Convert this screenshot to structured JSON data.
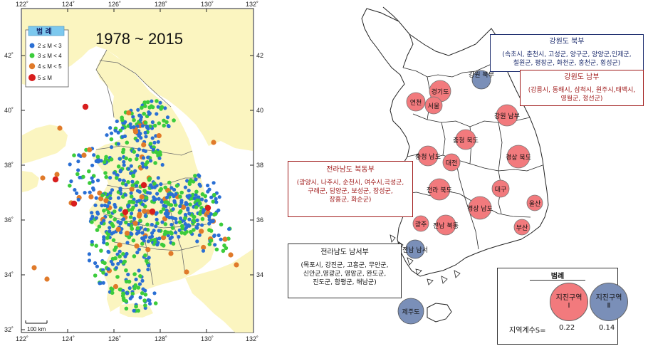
{
  "left_map": {
    "period_label": "1978 ~ 2015",
    "lon_ticks": [
      "122˚",
      "124˚",
      "126˚",
      "128˚",
      "130˚",
      "132˚"
    ],
    "lat_ticks": [
      "42˚",
      "40˚",
      "38˚",
      "36˚",
      "34˚",
      "32˚"
    ],
    "legend": {
      "title": "범 례",
      "items": [
        {
          "label": "2 ≤ M < 3",
          "color": "#2a6fd4"
        },
        {
          "label": "3 ≤ M < 4",
          "color": "#3ccc3c"
        },
        {
          "label": "4 ≤ M < 5",
          "color": "#e07a2a"
        },
        {
          "label": "5 ≤ M",
          "color": "#d81e1e"
        }
      ]
    },
    "scale_bar": "100 km",
    "colors": {
      "land": "#fbf5c0",
      "sea": "#ffffff",
      "border": "#6a6a6a",
      "frame": "#222222"
    }
  },
  "right_map": {
    "zones": [
      {
        "label": "경기도",
        "type": "I"
      },
      {
        "label": "연천",
        "type": "I"
      },
      {
        "label": "서울",
        "type": "I"
      },
      {
        "label": "강원 북부",
        "type": "II"
      },
      {
        "label": "강원 남부",
        "type": "I"
      },
      {
        "label": "충청 북도",
        "type": "I"
      },
      {
        "label": "충청 남도",
        "type": "I"
      },
      {
        "label": "대전",
        "type": "I"
      },
      {
        "label": "경상 북도",
        "type": "I"
      },
      {
        "label": "전라 북도",
        "type": "I"
      },
      {
        "label": "대구",
        "type": "I"
      },
      {
        "label": "경상 남도",
        "type": "I"
      },
      {
        "label": "울산",
        "type": "I"
      },
      {
        "label": "광주",
        "type": "I"
      },
      {
        "label": "전남 북동",
        "type": "I"
      },
      {
        "label": "부산",
        "type": "I"
      },
      {
        "label": "전남 남서",
        "type": "II"
      },
      {
        "label": "제주도",
        "type": "II"
      }
    ],
    "callouts": {
      "gangwon_north": {
        "title": "강원도 북부",
        "lines": [
          "(속초시, 춘천시, 고성군, 양구군, 양양군,인제군,",
          "철원군, 평창군, 화천군, 홍천군, 횡성군)"
        ]
      },
      "gangwon_south": {
        "title": "강원도 남부",
        "lines": [
          "(강릉시, 동해시, 삼척시, 원주시,태백시,",
          "영월군, 정선군)"
        ]
      },
      "jeonnam_northeast": {
        "title": "전라남도 북동부",
        "lines": [
          "(광양시, 나주시, 순천시, 여수시,곡성군,",
          "구례군, 담양군, 보성군, 장성군,",
          "장흥군, 화순군)"
        ]
      },
      "jeonnam_southwest": {
        "title": "전라남도 남서부",
        "lines": [
          "(목포시, 강진군, 고흥군, 무안군,",
          "신안군,영광군, 영암군, 완도군,",
          "진도군, 함평군, 해남군)"
        ]
      }
    },
    "legend": {
      "title": "범례",
      "zone1_line1": "지진구역",
      "zone1_line2": "Ⅰ",
      "zone2_line1": "지진구역",
      "zone2_line2": "Ⅱ",
      "coef_label": "지역계수S=",
      "zone1_value": "0.22",
      "zone2_value": "0.14"
    },
    "colors": {
      "zone1": "#f27a7d",
      "zone2": "#7a8fb8",
      "outline": "#222222"
    }
  }
}
